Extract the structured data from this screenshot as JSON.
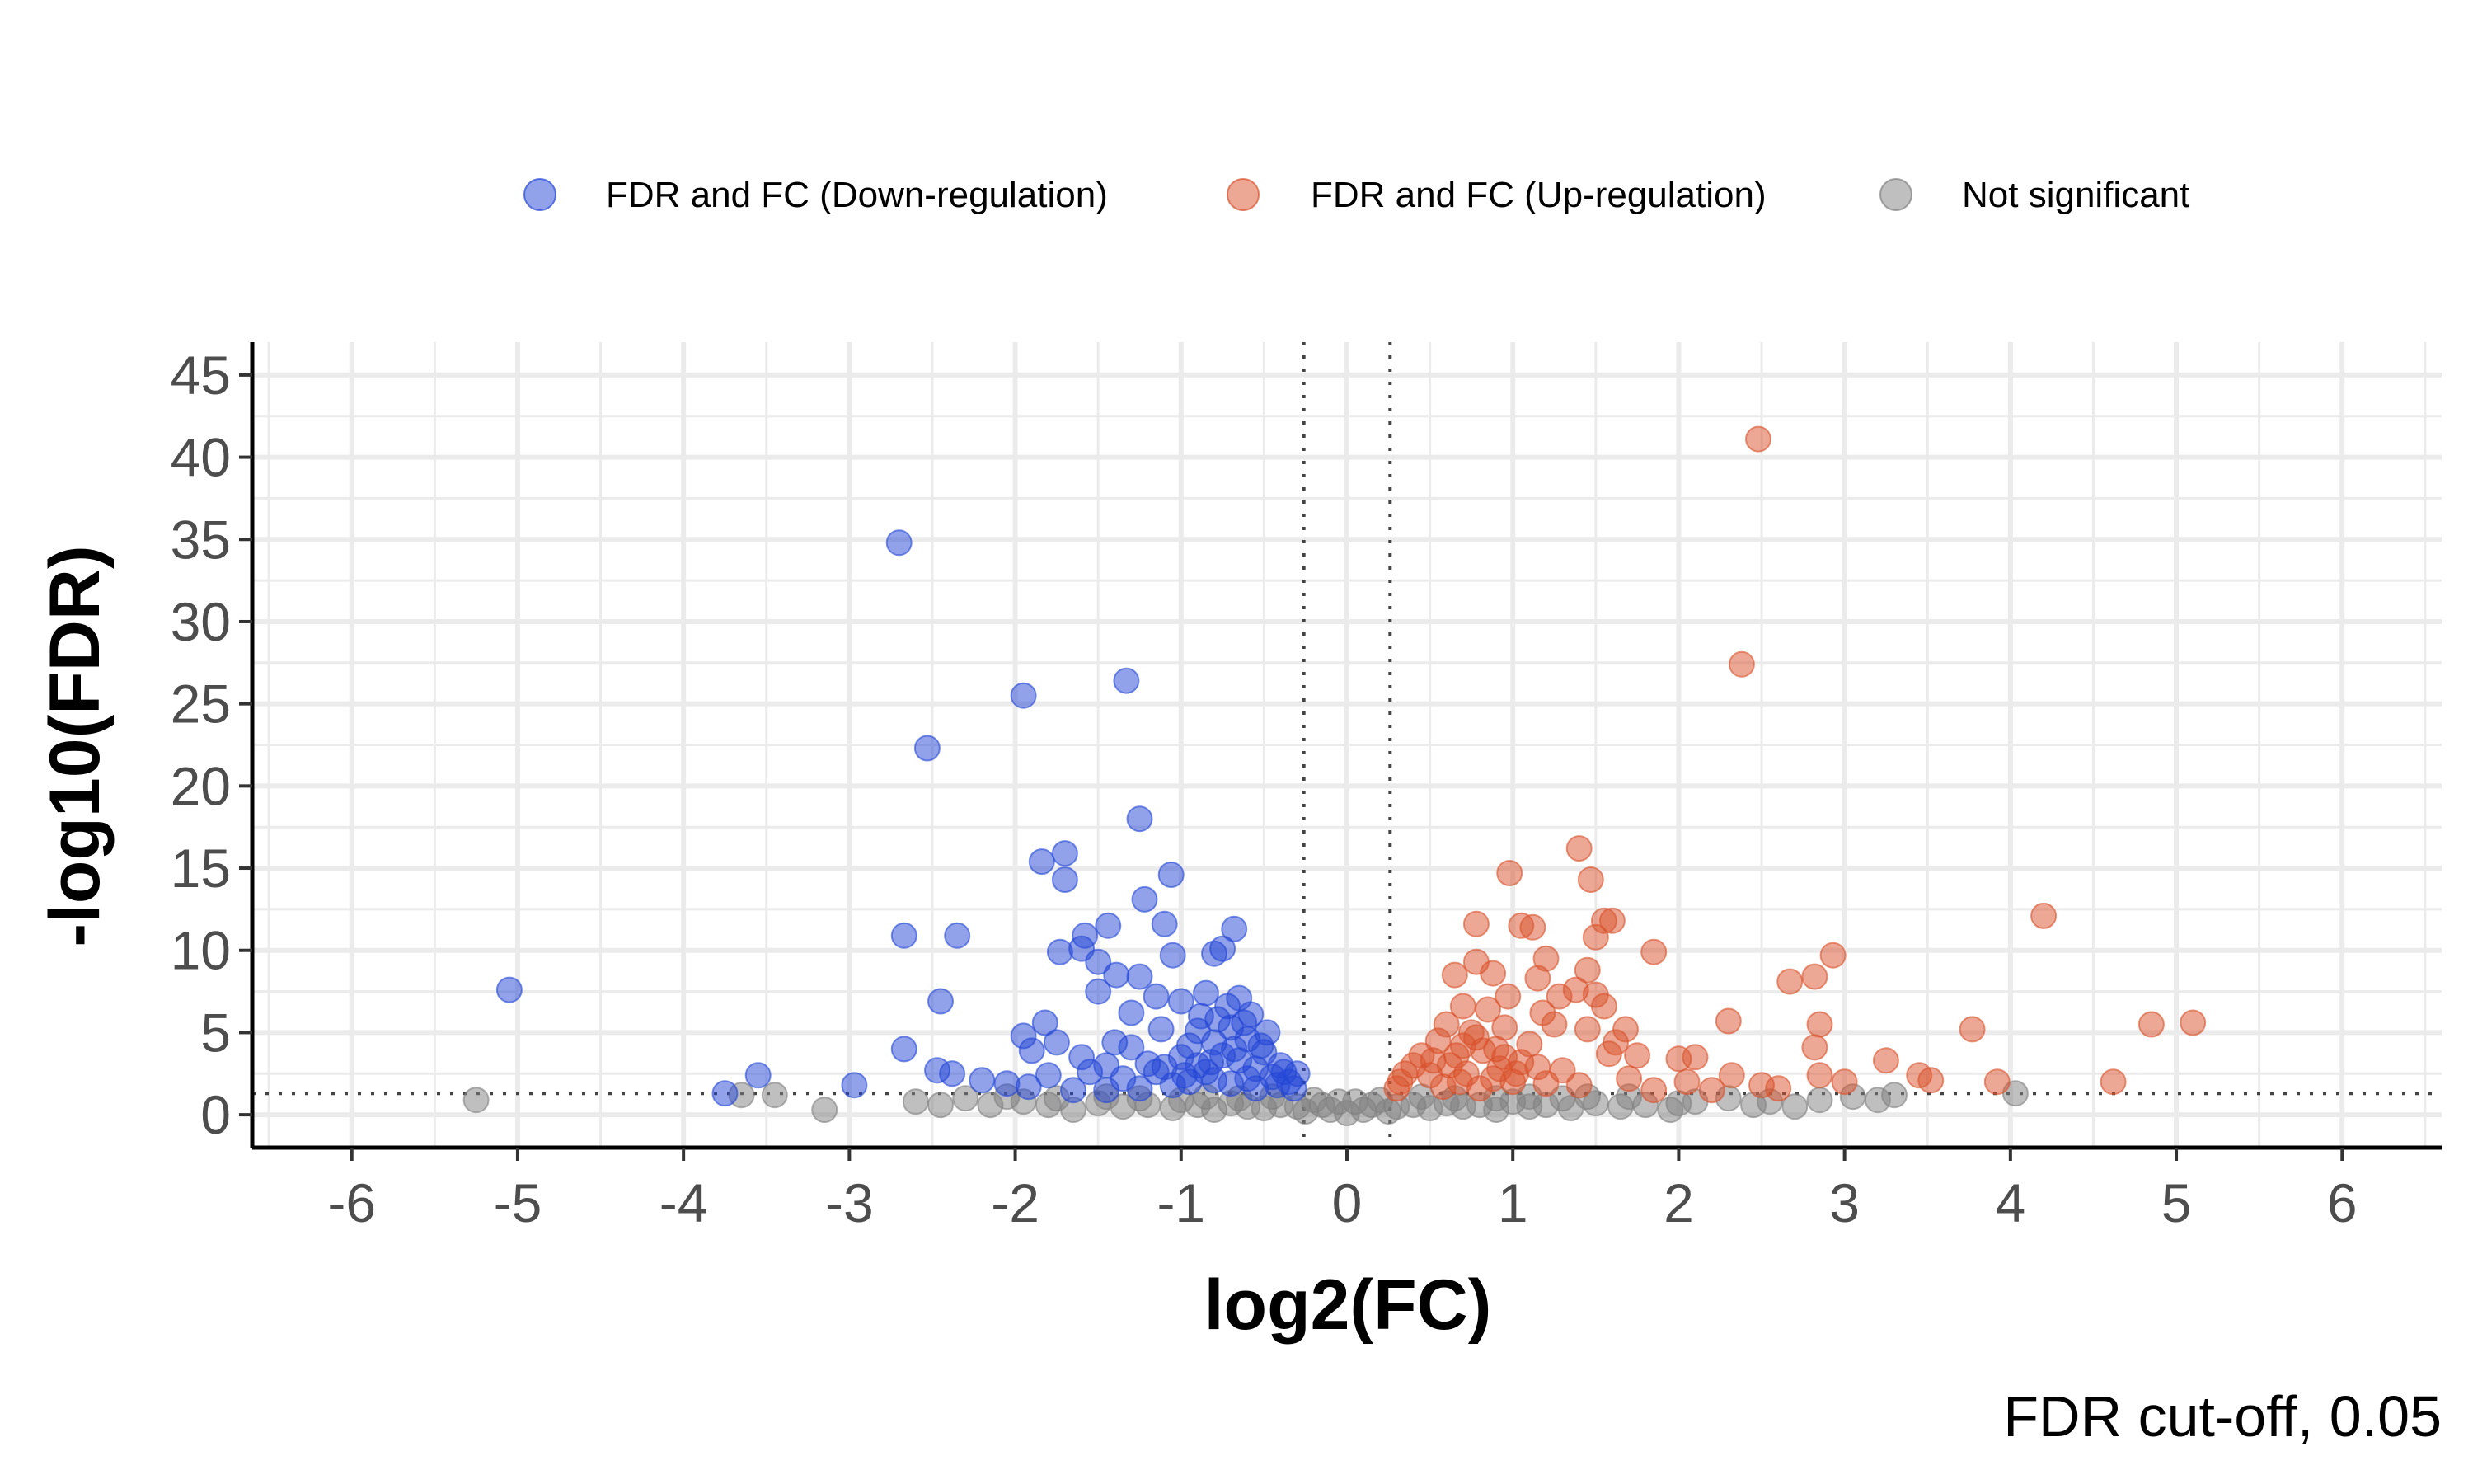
{
  "chart_data": {
    "type": "scatter",
    "title": "",
    "xlabel": "log2(FC)",
    "ylabel": "-log10(FDR)",
    "caption": "FDR cut-off, 0.05",
    "xlim": [
      -6.6,
      6.6
    ],
    "ylim": [
      -2,
      47
    ],
    "x_ticks": [
      -6,
      -5,
      -4,
      -3,
      -2,
      -1,
      0,
      1,
      2,
      3,
      4,
      5,
      6
    ],
    "y_ticks": [
      0,
      5,
      10,
      15,
      20,
      25,
      30,
      35,
      40,
      45
    ],
    "grid": true,
    "legend_position": "top",
    "thresholds": {
      "fc_lines": [
        -0.26,
        0.26
      ],
      "fdr_line": 1.3
    },
    "series": [
      {
        "name": "FDR and FC (Down-regulation)",
        "color": "#2346d6",
        "points": [
          [
            -2.7,
            34.8
          ],
          [
            -1.95,
            25.5
          ],
          [
            -1.33,
            26.4
          ],
          [
            -2.53,
            22.3
          ],
          [
            -1.25,
            18.0
          ],
          [
            -1.7,
            15.9
          ],
          [
            -1.84,
            15.4
          ],
          [
            -1.7,
            14.3
          ],
          [
            -1.06,
            14.6
          ],
          [
            -1.22,
            13.1
          ],
          [
            -2.67,
            10.9
          ],
          [
            -2.35,
            10.9
          ],
          [
            -1.58,
            10.9
          ],
          [
            -1.44,
            11.5
          ],
          [
            -1.1,
            11.6
          ],
          [
            -0.68,
            11.3
          ],
          [
            -1.73,
            9.9
          ],
          [
            -1.6,
            10.1
          ],
          [
            -1.5,
            9.3
          ],
          [
            -1.39,
            8.5
          ],
          [
            -1.25,
            8.4
          ],
          [
            -0.8,
            9.8
          ],
          [
            -0.75,
            10.1
          ],
          [
            -1.05,
            9.7
          ],
          [
            -1.5,
            7.5
          ],
          [
            -1.15,
            7.2
          ],
          [
            -1.0,
            6.9
          ],
          [
            -0.85,
            7.4
          ],
          [
            -0.65,
            7.1
          ],
          [
            -0.58,
            6.1
          ],
          [
            -2.45,
            6.9
          ],
          [
            -1.82,
            5.6
          ],
          [
            -1.95,
            4.8
          ],
          [
            -1.75,
            4.4
          ],
          [
            -1.4,
            4.4
          ],
          [
            -1.3,
            4.1
          ],
          [
            -2.67,
            4.0
          ],
          [
            -1.9,
            3.9
          ],
          [
            -1.6,
            3.5
          ],
          [
            -1.45,
            3.0
          ],
          [
            -2.47,
            2.7
          ],
          [
            -2.38,
            2.5
          ],
          [
            -2.2,
            2.1
          ],
          [
            -2.05,
            1.9
          ],
          [
            -1.92,
            1.7
          ],
          [
            -1.8,
            2.4
          ],
          [
            -1.55,
            2.6
          ],
          [
            -1.35,
            2.2
          ],
          [
            -1.2,
            3.1
          ],
          [
            -1.1,
            2.9
          ],
          [
            -0.95,
            4.2
          ],
          [
            -0.9,
            5.1
          ],
          [
            -0.8,
            4.4
          ],
          [
            -0.75,
            3.6
          ],
          [
            -0.7,
            5.3
          ],
          [
            -0.65,
            3.3
          ],
          [
            -0.6,
            4.6
          ],
          [
            -0.55,
            2.8
          ],
          [
            -0.5,
            3.8
          ],
          [
            -0.45,
            2.3
          ],
          [
            -0.4,
            3.0
          ],
          [
            -0.35,
            2.0
          ],
          [
            -0.32,
            1.6
          ],
          [
            -0.3,
            2.5
          ],
          [
            -0.85,
            2.6
          ],
          [
            -0.95,
            2.0
          ],
          [
            -1.05,
            1.8
          ],
          [
            -1.25,
            1.6
          ],
          [
            -1.45,
            1.5
          ],
          [
            -1.65,
            1.5
          ],
          [
            -1.0,
            3.5
          ],
          [
            -0.9,
            3.0
          ],
          [
            -0.88,
            6.0
          ],
          [
            -0.72,
            6.6
          ],
          [
            -0.62,
            5.6
          ],
          [
            -0.52,
            4.2
          ],
          [
            -0.48,
            5.0
          ],
          [
            -0.78,
            5.8
          ],
          [
            -1.12,
            5.2
          ],
          [
            -1.3,
            6.2
          ],
          [
            -0.6,
            2.2
          ],
          [
            -0.7,
            1.9
          ],
          [
            -0.8,
            2.1
          ],
          [
            -0.98,
            2.4
          ],
          [
            -1.15,
            2.6
          ],
          [
            -0.42,
            1.8
          ],
          [
            -0.38,
            2.6
          ],
          [
            -0.55,
            1.6
          ],
          [
            -0.68,
            4.0
          ],
          [
            -0.82,
            3.2
          ],
          [
            -2.97,
            1.8
          ],
          [
            -3.75,
            1.3
          ],
          [
            -3.55,
            2.4
          ],
          [
            -5.05,
            7.6
          ]
        ]
      },
      {
        "name": "FDR and FC (Up-regulation)",
        "color": "#d9512c",
        "points": [
          [
            2.48,
            41.1
          ],
          [
            2.38,
            27.4
          ],
          [
            1.4,
            16.2
          ],
          [
            0.98,
            14.7
          ],
          [
            1.47,
            14.3
          ],
          [
            1.55,
            11.8
          ],
          [
            1.6,
            11.8
          ],
          [
            1.05,
            11.5
          ],
          [
            1.12,
            11.4
          ],
          [
            0.78,
            11.6
          ],
          [
            1.5,
            10.8
          ],
          [
            1.85,
            9.9
          ],
          [
            4.2,
            12.1
          ],
          [
            2.93,
            9.7
          ],
          [
            0.78,
            9.3
          ],
          [
            1.2,
            9.5
          ],
          [
            0.65,
            8.5
          ],
          [
            0.88,
            8.6
          ],
          [
            1.15,
            8.3
          ],
          [
            1.45,
            8.8
          ],
          [
            2.67,
            8.1
          ],
          [
            2.82,
            8.4
          ],
          [
            0.97,
            7.2
          ],
          [
            1.28,
            7.2
          ],
          [
            1.38,
            7.6
          ],
          [
            1.5,
            7.3
          ],
          [
            0.7,
            6.6
          ],
          [
            0.85,
            6.4
          ],
          [
            1.18,
            6.2
          ],
          [
            1.55,
            6.6
          ],
          [
            2.3,
            5.7
          ],
          [
            2.85,
            5.5
          ],
          [
            3.77,
            5.2
          ],
          [
            4.85,
            5.5
          ],
          [
            5.1,
            5.6
          ],
          [
            0.6,
            5.5
          ],
          [
            0.75,
            5.0
          ],
          [
            0.95,
            5.3
          ],
          [
            1.25,
            5.5
          ],
          [
            1.45,
            5.2
          ],
          [
            1.68,
            5.2
          ],
          [
            1.62,
            4.4
          ],
          [
            1.58,
            3.7
          ],
          [
            1.75,
            3.6
          ],
          [
            2.0,
            3.4
          ],
          [
            2.1,
            3.5
          ],
          [
            2.82,
            4.1
          ],
          [
            3.25,
            3.3
          ],
          [
            0.55,
            4.5
          ],
          [
            0.7,
            4.2
          ],
          [
            0.82,
            3.9
          ],
          [
            0.95,
            3.5
          ],
          [
            1.05,
            3.2
          ],
          [
            1.15,
            2.9
          ],
          [
            1.3,
            2.7
          ],
          [
            0.45,
            3.6
          ],
          [
            0.4,
            3.0
          ],
          [
            0.35,
            2.5
          ],
          [
            0.32,
            2.0
          ],
          [
            0.3,
            1.6
          ],
          [
            0.5,
            2.4
          ],
          [
            0.62,
            3.0
          ],
          [
            0.72,
            2.5
          ],
          [
            0.88,
            2.2
          ],
          [
            1.0,
            2.0
          ],
          [
            1.2,
            1.9
          ],
          [
            1.4,
            1.8
          ],
          [
            1.7,
            2.2
          ],
          [
            2.05,
            2.0
          ],
          [
            2.32,
            2.4
          ],
          [
            2.85,
            2.4
          ],
          [
            3.0,
            2.0
          ],
          [
            3.45,
            2.4
          ],
          [
            3.52,
            2.1
          ],
          [
            3.92,
            2.0
          ],
          [
            4.62,
            2.0
          ],
          [
            2.5,
            1.8
          ],
          [
            2.6,
            1.6
          ],
          [
            2.2,
            1.5
          ],
          [
            1.85,
            1.5
          ],
          [
            0.58,
            1.7
          ],
          [
            0.68,
            2.0
          ],
          [
            0.8,
            1.6
          ],
          [
            0.92,
            2.8
          ],
          [
            1.1,
            4.3
          ],
          [
            0.52,
            3.3
          ],
          [
            0.66,
            3.6
          ],
          [
            0.78,
            4.7
          ],
          [
            0.9,
            4.0
          ],
          [
            1.02,
            2.5
          ]
        ]
      },
      {
        "name": "Not significant",
        "color": "#808080",
        "points": [
          [
            -5.25,
            0.9
          ],
          [
            -3.65,
            1.2
          ],
          [
            -3.45,
            1.2
          ],
          [
            -3.15,
            0.3
          ],
          [
            -2.45,
            0.6
          ],
          [
            -2.3,
            1.0
          ],
          [
            -2.15,
            0.6
          ],
          [
            -1.95,
            0.8
          ],
          [
            -1.8,
            0.6
          ],
          [
            -1.65,
            0.3
          ],
          [
            -1.5,
            0.7
          ],
          [
            -1.35,
            0.5
          ],
          [
            -1.2,
            0.6
          ],
          [
            -1.05,
            0.4
          ],
          [
            -0.9,
            0.6
          ],
          [
            -0.8,
            0.3
          ],
          [
            -0.7,
            0.7
          ],
          [
            -0.6,
            0.5
          ],
          [
            -0.5,
            0.4
          ],
          [
            -0.4,
            0.6
          ],
          [
            -0.3,
            0.5
          ],
          [
            -0.2,
            0.9
          ],
          [
            -0.1,
            0.3
          ],
          [
            0.0,
            0.1
          ],
          [
            0.1,
            0.3
          ],
          [
            0.2,
            0.9
          ],
          [
            0.3,
            0.5
          ],
          [
            0.4,
            0.6
          ],
          [
            0.5,
            0.4
          ],
          [
            0.6,
            0.7
          ],
          [
            0.7,
            0.5
          ],
          [
            0.8,
            0.6
          ],
          [
            0.9,
            0.3
          ],
          [
            1.0,
            0.8
          ],
          [
            1.1,
            0.5
          ],
          [
            1.2,
            0.6
          ],
          [
            1.35,
            0.4
          ],
          [
            1.5,
            0.7
          ],
          [
            1.65,
            0.5
          ],
          [
            1.8,
            0.6
          ],
          [
            1.95,
            0.3
          ],
          [
            2.1,
            0.8
          ],
          [
            2.3,
            1.0
          ],
          [
            2.55,
            0.8
          ],
          [
            2.7,
            0.5
          ],
          [
            2.85,
            0.9
          ],
          [
            3.05,
            1.1
          ],
          [
            3.2,
            0.9
          ],
          [
            3.3,
            1.2
          ],
          [
            4.03,
            1.3
          ],
          [
            -1.0,
            0.9
          ],
          [
            -1.25,
            1.0
          ],
          [
            -0.65,
            1.0
          ],
          [
            -0.45,
            1.1
          ],
          [
            0.45,
            1.1
          ],
          [
            0.65,
            1.0
          ],
          [
            0.9,
            1.0
          ],
          [
            1.3,
            1.0
          ],
          [
            1.7,
            1.1
          ],
          [
            -2.6,
            0.8
          ],
          [
            -2.05,
            1.1
          ],
          [
            -1.75,
            1.0
          ],
          [
            -1.45,
            1.1
          ],
          [
            -0.85,
            1.1
          ],
          [
            1.1,
            1.1
          ],
          [
            1.45,
            1.1
          ],
          [
            2.0,
            0.7
          ],
          [
            2.45,
            0.6
          ],
          [
            -0.25,
            0.2
          ],
          [
            0.25,
            0.2
          ],
          [
            -0.15,
            0.6
          ],
          [
            0.15,
            0.6
          ],
          [
            -0.05,
            0.8
          ],
          [
            0.05,
            0.8
          ]
        ]
      }
    ]
  }
}
